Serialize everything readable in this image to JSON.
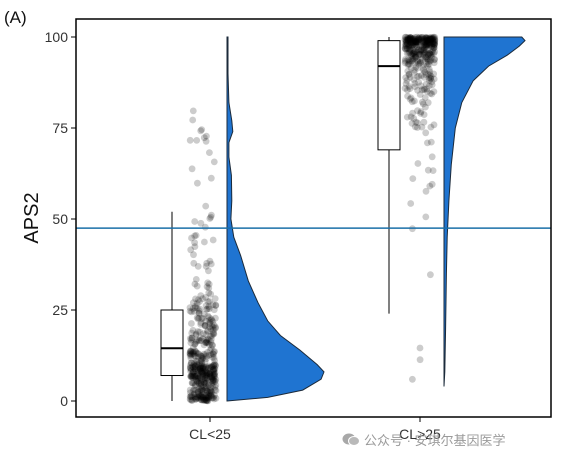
{
  "panel_label": "(A)",
  "watermark": "公众号 · 安琪尔基因医学",
  "colors": {
    "violin": "#1f74d1",
    "reference_line": "#1a6fa8",
    "points": "#000000"
  },
  "chart_data": {
    "type": "raincloud",
    "title": "",
    "xlabel": "",
    "ylabel": "APS2",
    "ylim": [
      0,
      100
    ],
    "yticks": [
      0,
      25,
      50,
      75,
      100
    ],
    "categories": [
      "CL<25",
      "CL>25"
    ],
    "reference_line_y": 47.5,
    "groups": [
      {
        "name": "CL<25",
        "box": {
          "min": 0,
          "q1": 7,
          "median": 14.5,
          "q3": 25,
          "max": 52
        },
        "points_range": [
          0,
          100
        ]
      },
      {
        "name": "CL>25",
        "box": {
          "min": 24,
          "q1": 69,
          "median": 92,
          "q3": 99,
          "max": 100
        },
        "points_range": [
          4,
          100
        ]
      }
    ]
  }
}
